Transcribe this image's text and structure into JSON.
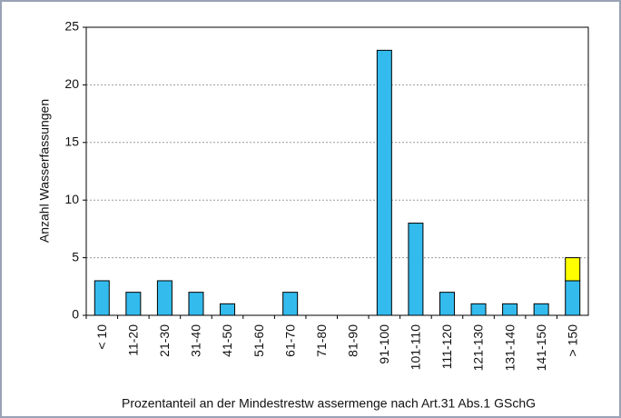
{
  "chart_data": {
    "type": "bar",
    "stacked": true,
    "y_label": "Anzahl Wasserfassungen",
    "x_label": "Prozentanteil an der Mindestrestw assermenge nach Art.31 Abs.1 GSchG",
    "categories": [
      "< 10",
      "11-20",
      "21-30",
      "31-40",
      "41-50",
      "51-60",
      "61-70",
      "71-80",
      "81-90",
      "91-100",
      "101-110",
      "111-120",
      "121-130",
      "131-140",
      "141-150",
      "> 150"
    ],
    "series": [
      {
        "color": "#33bbee",
        "values": [
          3,
          2,
          3,
          2,
          1,
          0,
          2,
          0,
          0,
          23,
          8,
          2,
          1,
          1,
          1,
          3
        ]
      },
      {
        "color": "#ffff00",
        "values": [
          0,
          0,
          0,
          0,
          0,
          0,
          0,
          0,
          0,
          0,
          0,
          0,
          0,
          0,
          0,
          2
        ]
      }
    ],
    "ylim": [
      0,
      25
    ],
    "yticks": [
      0,
      5,
      10,
      15,
      20,
      25
    ],
    "grid": true
  }
}
